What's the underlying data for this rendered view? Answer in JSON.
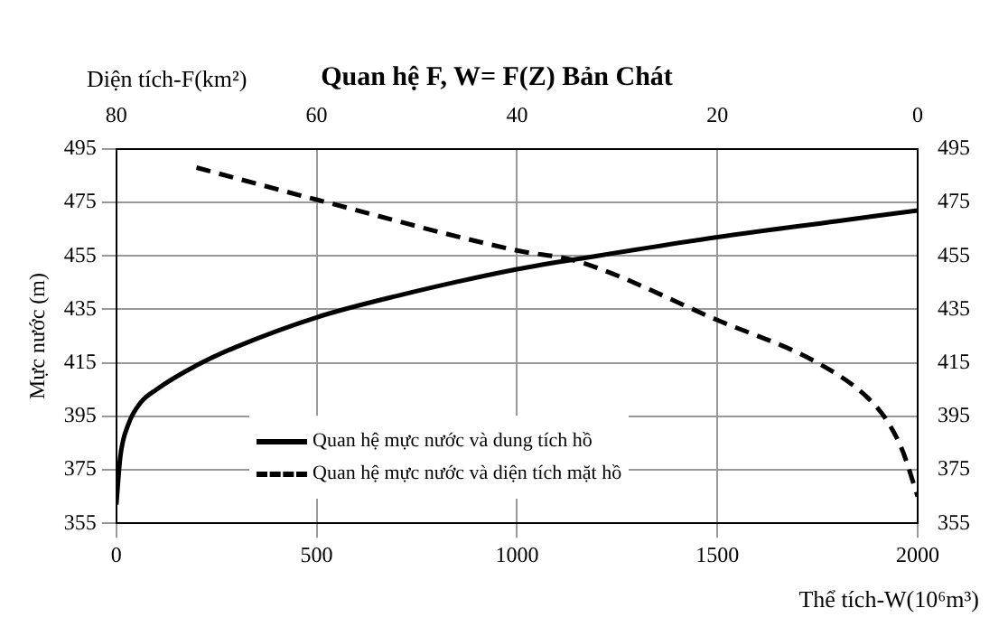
{
  "chart_data": {
    "type": "line",
    "title": "Quan hệ F, W= F(Z) Bản Chát",
    "xlabel": "Thể tích-W(10⁶m³)",
    "x2label": "Diện tích-F(km²)",
    "ylabel": "Mực nước (m)",
    "xlim": [
      0,
      2000
    ],
    "xticks": [
      0,
      500,
      1000,
      1500,
      2000
    ],
    "x2lim": [
      80,
      0
    ],
    "x2ticks": [
      80,
      60,
      40,
      20,
      0
    ],
    "ylim": [
      355,
      495
    ],
    "yticks": [
      355,
      375,
      395,
      415,
      435,
      455,
      475,
      495
    ],
    "y2lim": [
      355,
      495
    ],
    "y2ticks": [
      355,
      375,
      395,
      415,
      435,
      455,
      475,
      495
    ],
    "grid": true,
    "legend": "bottom left",
    "marker": "none",
    "series": [
      {
        "name": "Quan hệ mực nước và dung tích hồ",
        "color": "#000000",
        "line_style": "solid",
        "x": [
          0,
          10,
          30,
          60,
          100,
          200,
          300,
          500,
          700,
          1000,
          1200,
          1500,
          1800,
          2000
        ],
        "values": [
          362,
          380,
          392,
          400,
          405,
          414,
          421,
          432,
          440,
          450,
          455,
          462,
          468,
          472
        ]
      },
      {
        "name": "Quan hệ mực nước và diện tích mặt hồ",
        "color": "#000000",
        "line_style": "dashed",
        "axis": "x2",
        "x": [
          72,
          60,
          40,
          34,
          20,
          10,
          5,
          3,
          1.5,
          0
        ],
        "values": [
          488,
          476,
          457,
          453,
          431,
          415,
          402,
          393,
          382,
          365
        ]
      }
    ]
  }
}
